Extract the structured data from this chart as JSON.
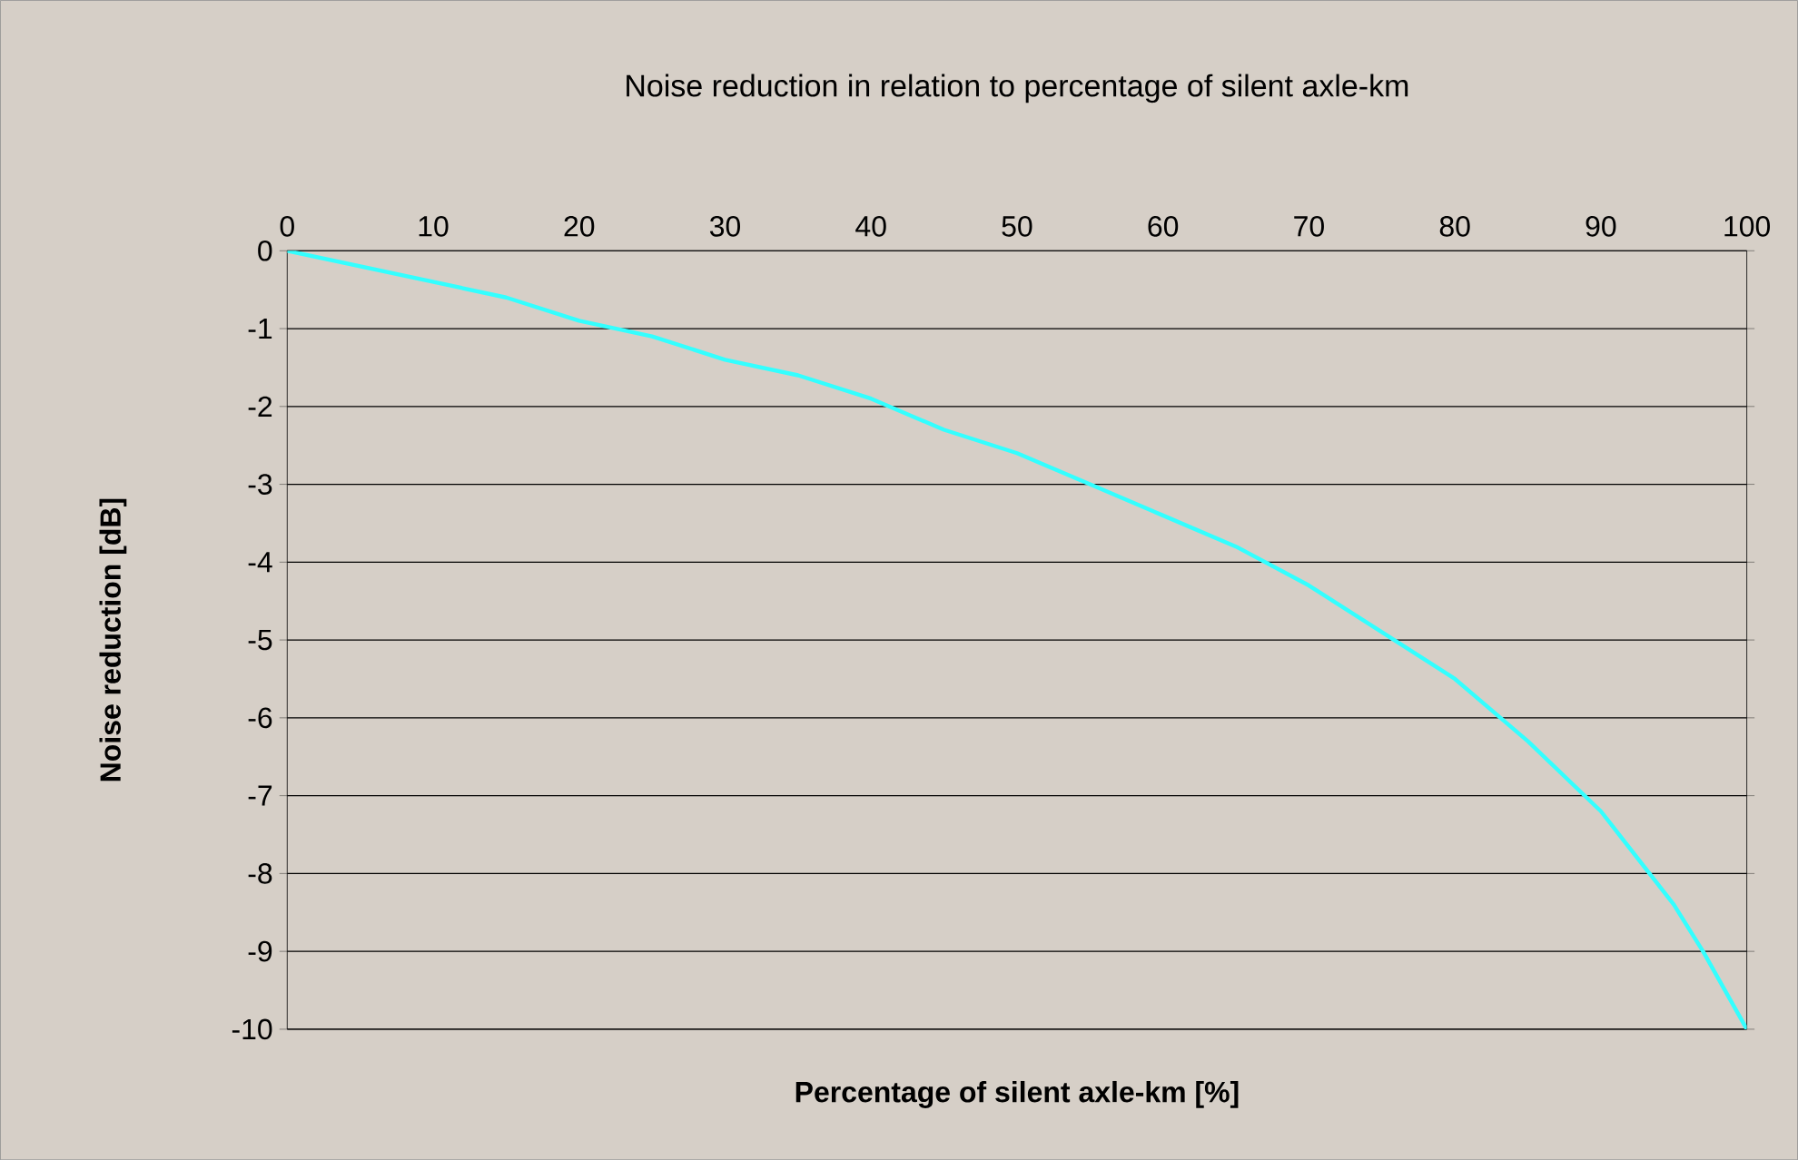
{
  "chart_data": {
    "type": "line",
    "title": "Noise reduction in relation to percentage of silent axle-km",
    "xlabel": "Percentage of silent axle-km [%]",
    "ylabel": "Noise reduction [dB]",
    "x": [
      0,
      5,
      10,
      15,
      20,
      25,
      30,
      35,
      40,
      45,
      50,
      55,
      60,
      65,
      70,
      75,
      80,
      85,
      90,
      95,
      97,
      100
    ],
    "series": [
      {
        "color": "#33ffff",
        "values": [
          0,
          -0.2,
          -0.4,
          -0.6,
          -0.9,
          -1.1,
          -1.4,
          -1.6,
          -1.9,
          -2.3,
          -2.6,
          -3.0,
          -3.4,
          -3.8,
          -4.3,
          -4.9,
          -5.5,
          -6.3,
          -7.2,
          -8.4,
          -9.0,
          -10
        ]
      }
    ],
    "xlim": [
      0,
      100
    ],
    "ylim": [
      -10,
      0
    ],
    "xticks": [
      0,
      10,
      20,
      30,
      40,
      50,
      60,
      70,
      80,
      90,
      100
    ],
    "yticks": [
      0,
      -1,
      -2,
      -3,
      -4,
      -5,
      -6,
      -7,
      -8,
      -9,
      -10
    ],
    "grid": "y",
    "marker": "none",
    "line_style": "solid"
  }
}
